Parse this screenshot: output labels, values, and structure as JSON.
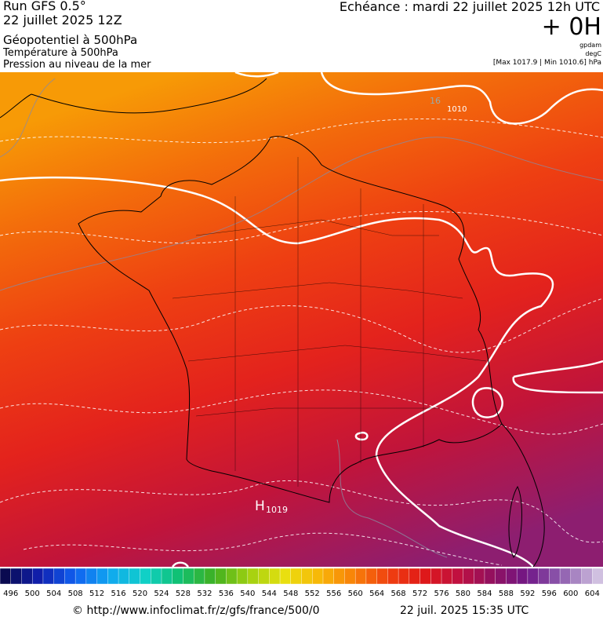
{
  "header": {
    "run": "Run GFS 0.5°",
    "date": "22 juillet 2025 12Z",
    "field": "Géopotentiel à 500hPa",
    "field2": "Température à 500hPa",
    "field3": "Pression au niveau de la mer",
    "valid": "Echéance : mardi 22 juillet 2025 12h UTC",
    "lead": "+ 0H",
    "unit1": "gpdam",
    "unit2": "degC",
    "range": "[Max 1017.9 | Min 1010.6] hPa"
  },
  "map": {
    "labels": [
      "16",
      "1010",
      "H",
      "1019"
    ]
  },
  "legend": {
    "labels": [
      496,
      500,
      504,
      508,
      512,
      516,
      520,
      524,
      528,
      532,
      536,
      540,
      544,
      548,
      552,
      556,
      560,
      564,
      568,
      572,
      576,
      580,
      584,
      588,
      592,
      596,
      600,
      604
    ]
  },
  "footer": {
    "url": "© http://www.infoclimat.fr/z/gfs/france/500/0",
    "time": "22 juil. 2025 15:35 UTC"
  }
}
